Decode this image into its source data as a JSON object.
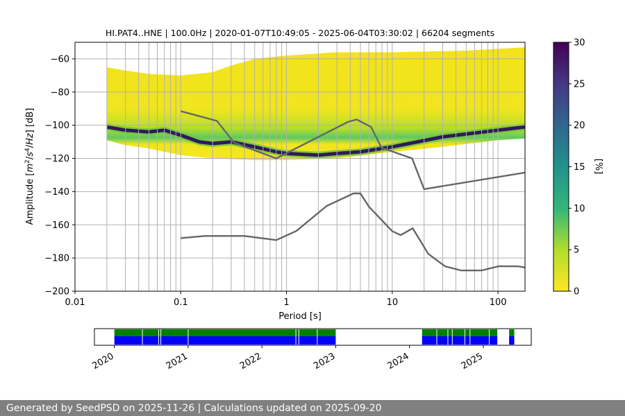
{
  "chart_data": [
    {
      "type": "heatmap",
      "title": "HI.PAT4..HNE | 100.0Hz | 2020-01-07T10:49:05 - 2025-06-04T03:30:02 | 66204 segments",
      "xlabel": "Period [s]",
      "ylabel_parts": [
        "Amplitude [",
        "m",
        "2",
        "/",
        "s",
        "4",
        "/",
        "Hz",
        "] [dB]"
      ],
      "x_scale": "log",
      "xlim": [
        0.01,
        180
      ],
      "ylim": [
        -200,
        -50
      ],
      "x_ticks": [
        0.01,
        0.1,
        1,
        10,
        100
      ],
      "x_tick_labels": [
        "0.01",
        "0.1",
        "1",
        "10",
        "100"
      ],
      "y_ticks": [
        -60,
        -80,
        -100,
        -120,
        -140,
        -160,
        -180,
        -200
      ],
      "y_tick_labels": [
        "−60",
        "−80",
        "−100",
        "−120",
        "−140",
        "−160",
        "−180",
        "−200"
      ],
      "grid": true,
      "period_range": [
        0.02,
        180
      ],
      "envelope_top": [
        [
          0.02,
          -65
        ],
        [
          0.03,
          -67
        ],
        [
          0.05,
          -69
        ],
        [
          0.1,
          -70
        ],
        [
          0.2,
          -68
        ],
        [
          0.3,
          -64
        ],
        [
          0.5,
          -60
        ],
        [
          1,
          -58
        ],
        [
          3,
          -56
        ],
        [
          10,
          -56
        ],
        [
          50,
          -55
        ],
        [
          180,
          -53
        ]
      ],
      "envelope_bottom": [
        [
          0.02,
          -109
        ],
        [
          0.03,
          -112
        ],
        [
          0.05,
          -114
        ],
        [
          0.07,
          -116
        ],
        [
          0.1,
          -118
        ],
        [
          0.2,
          -120
        ],
        [
          0.5,
          -121
        ],
        [
          1,
          -121
        ],
        [
          3,
          -120
        ],
        [
          10,
          -116
        ],
        [
          30,
          -113
        ],
        [
          100,
          -109
        ],
        [
          180,
          -108
        ]
      ],
      "mode_line": [
        [
          0.02,
          -101
        ],
        [
          0.03,
          -103
        ],
        [
          0.05,
          -104
        ],
        [
          0.07,
          -103
        ],
        [
          0.1,
          -106
        ],
        [
          0.15,
          -110
        ],
        [
          0.2,
          -111
        ],
        [
          0.3,
          -110
        ],
        [
          0.5,
          -113
        ],
        [
          0.8,
          -116
        ],
        [
          1,
          -117
        ],
        [
          2,
          -118
        ],
        [
          3,
          -117
        ],
        [
          5,
          -116
        ],
        [
          10,
          -113
        ],
        [
          30,
          -107
        ],
        [
          100,
          -103
        ],
        [
          180,
          -101
        ]
      ],
      "noise_model_high": [
        [
          0.1,
          -91.5
        ],
        [
          0.22,
          -97.4
        ],
        [
          0.32,
          -110.5
        ],
        [
          0.8,
          -120
        ],
        [
          3.8,
          -98
        ],
        [
          4.6,
          -96.5
        ],
        [
          6.3,
          -101
        ],
        [
          7.9,
          -113.5
        ],
        [
          15.4,
          -120
        ],
        [
          20,
          -138.5
        ],
        [
          180,
          -128.5
        ]
      ],
      "noise_model_low": [
        [
          0.1,
          -168
        ],
        [
          0.17,
          -166.7
        ],
        [
          0.4,
          -166.7
        ],
        [
          0.8,
          -169.2
        ],
        [
          1.24,
          -163.7
        ],
        [
          2.4,
          -148.6
        ],
        [
          4.3,
          -141.1
        ],
        [
          5,
          -141.1
        ],
        [
          6,
          -149
        ],
        [
          10,
          -163.8
        ],
        [
          12,
          -166.2
        ],
        [
          15.6,
          -162.1
        ],
        [
          21.9,
          -177.5
        ],
        [
          31.6,
          -185
        ],
        [
          45,
          -187.5
        ],
        [
          70,
          -187.5
        ],
        [
          101,
          -185
        ],
        [
          154,
          -185
        ],
        [
          180,
          -185.7
        ]
      ],
      "vertical_grid_periods": [
        0.02,
        0.03,
        0.04,
        0.05,
        0.06,
        0.07,
        0.08,
        0.09,
        0.2,
        0.3,
        0.4,
        0.5,
        0.6,
        0.7,
        0.8,
        0.9,
        2,
        3,
        4,
        5,
        6,
        7,
        8,
        9,
        20,
        30,
        40,
        50,
        60,
        70,
        80,
        90
      ]
    },
    {
      "type": "bar",
      "x_ticks": [
        "2020",
        "2021",
        "2022",
        "2023",
        "2024",
        "2025"
      ],
      "time_range": [
        "2020-01-07",
        "2025-06-04"
      ],
      "data_spans": [
        {
          "start": 2020.0,
          "end": 2023.0
        },
        {
          "start": 2024.17,
          "end": 2025.19
        },
        {
          "start": 2025.35,
          "end": 2025.42
        }
      ],
      "gaps": [
        2020.38,
        2020.6,
        2020.63,
        2021.0,
        2022.46,
        2022.5,
        2022.75,
        2024.37,
        2024.52,
        2024.58,
        2024.75,
        2024.82,
        2025.08
      ]
    }
  ],
  "colorbar": {
    "label": "[%]",
    "ticks": [
      0,
      5,
      10,
      15,
      20,
      25,
      30
    ],
    "range": [
      0,
      30
    ],
    "colormap": "viridis_r"
  },
  "colors": {
    "noise_model": "#666666",
    "availability_primary": "#008000",
    "availability_secondary": "#0000ff",
    "grid": "#b0b0b0"
  },
  "footer": {
    "text": "Generated by SeedPSD on 2025-11-26 | Calculations updated on 2025-09-20"
  }
}
